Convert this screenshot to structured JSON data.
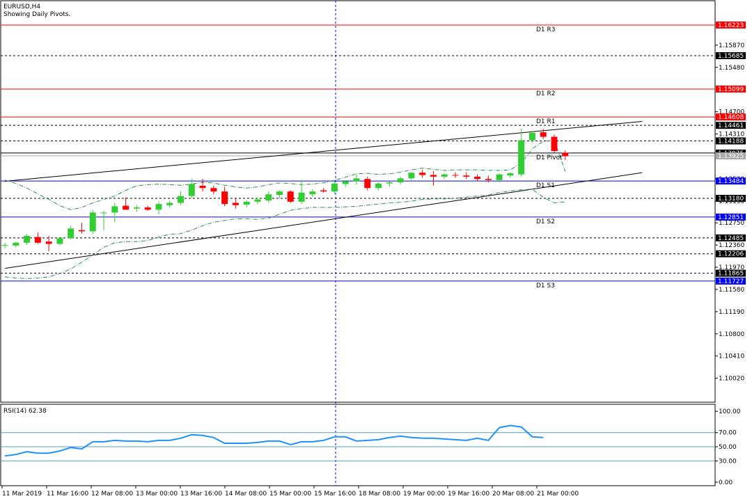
{
  "header": {
    "symbol": "EURUSD,H4",
    "subtitle": "Showing Daily Pivots."
  },
  "colors": {
    "bull": "#32cd32",
    "bear": "#ff0000",
    "pivot_red": "#ff0000",
    "pivot_blue": "#0000ff",
    "rsi": "#1e90ff",
    "band": "#2e8b57",
    "trend": "#000000"
  },
  "chart_data": [
    {
      "type": "candlestick",
      "title": "EURUSD,H4",
      "subtitle": "Showing Daily Pivots.",
      "ylim": [
        1.096,
        1.1665
      ],
      "price_ticks": [
        "1.15870",
        "1.15480",
        "1.14700",
        "1.14310",
        "1.13520",
        "1.13130",
        "1.12750",
        "1.12360",
        "1.11970",
        "1.11580",
        "1.11190",
        "1.10800",
        "1.10410",
        "1.10020"
      ],
      "time_labels": [
        "11 Mar 2019",
        "11 Mar 16:00",
        "12 Mar 08:00",
        "13 Mar 00:00",
        "13 Mar 16:00",
        "14 Mar 08:00",
        "15 Mar 00:00",
        "15 Mar 16:00",
        "18 Mar 08:00",
        "19 Mar 00:00",
        "19 Mar 16:00",
        "20 Mar 08:00",
        "21 Mar 00:00"
      ],
      "candles": [
        {
          "o": 1.1235,
          "h": 1.124,
          "l": 1.123,
          "c": 1.1236
        },
        {
          "o": 1.1235,
          "h": 1.1242,
          "l": 1.1232,
          "c": 1.124
        },
        {
          "o": 1.124,
          "h": 1.1255,
          "l": 1.1236,
          "c": 1.1252
        },
        {
          "o": 1.125,
          "h": 1.1258,
          "l": 1.1238,
          "c": 1.124
        },
        {
          "o": 1.1242,
          "h": 1.1252,
          "l": 1.1225,
          "c": 1.1238
        },
        {
          "o": 1.1238,
          "h": 1.125,
          "l": 1.1235,
          "c": 1.1248
        },
        {
          "o": 1.1248,
          "h": 1.127,
          "l": 1.1246,
          "c": 1.1265
        },
        {
          "o": 1.1262,
          "h": 1.1275,
          "l": 1.1256,
          "c": 1.126
        },
        {
          "o": 1.126,
          "h": 1.1298,
          "l": 1.1255,
          "c": 1.1293
        },
        {
          "o": 1.1292,
          "h": 1.1296,
          "l": 1.1262,
          "c": 1.1293
        },
        {
          "o": 1.1293,
          "h": 1.131,
          "l": 1.1276,
          "c": 1.1304
        },
        {
          "o": 1.1305,
          "h": 1.132,
          "l": 1.1298,
          "c": 1.1298
        },
        {
          "o": 1.13,
          "h": 1.1306,
          "l": 1.1294,
          "c": 1.1302
        },
        {
          "o": 1.1302,
          "h": 1.1305,
          "l": 1.1296,
          "c": 1.1298
        },
        {
          "o": 1.1298,
          "h": 1.1312,
          "l": 1.129,
          "c": 1.1308
        },
        {
          "o": 1.1306,
          "h": 1.1314,
          "l": 1.1302,
          "c": 1.131
        },
        {
          "o": 1.131,
          "h": 1.133,
          "l": 1.1306,
          "c": 1.1322
        },
        {
          "o": 1.1322,
          "h": 1.1352,
          "l": 1.1318,
          "c": 1.1343
        },
        {
          "o": 1.134,
          "h": 1.1352,
          "l": 1.133,
          "c": 1.1336
        },
        {
          "o": 1.1336,
          "h": 1.134,
          "l": 1.1325,
          "c": 1.133
        },
        {
          "o": 1.133,
          "h": 1.1338,
          "l": 1.1304,
          "c": 1.1308
        },
        {
          "o": 1.131,
          "h": 1.1318,
          "l": 1.13,
          "c": 1.1306
        },
        {
          "o": 1.1307,
          "h": 1.1314,
          "l": 1.1302,
          "c": 1.1312
        },
        {
          "o": 1.1312,
          "h": 1.1318,
          "l": 1.1308,
          "c": 1.1316
        },
        {
          "o": 1.1314,
          "h": 1.133,
          "l": 1.131,
          "c": 1.1325
        },
        {
          "o": 1.1324,
          "h": 1.1332,
          "l": 1.1318,
          "c": 1.133
        },
        {
          "o": 1.133,
          "h": 1.1332,
          "l": 1.131,
          "c": 1.1312
        },
        {
          "o": 1.1312,
          "h": 1.135,
          "l": 1.1308,
          "c": 1.1328
        },
        {
          "o": 1.1325,
          "h": 1.1334,
          "l": 1.132,
          "c": 1.133
        },
        {
          "o": 1.1332,
          "h": 1.1336,
          "l": 1.1328,
          "c": 1.133
        },
        {
          "o": 1.133,
          "h": 1.1348,
          "l": 1.1326,
          "c": 1.1344
        },
        {
          "o": 1.1343,
          "h": 1.135,
          "l": 1.1338,
          "c": 1.1348
        },
        {
          "o": 1.1348,
          "h": 1.136,
          "l": 1.1342,
          "c": 1.1353
        },
        {
          "o": 1.1352,
          "h": 1.1356,
          "l": 1.1332,
          "c": 1.1336
        },
        {
          "o": 1.1336,
          "h": 1.1346,
          "l": 1.1332,
          "c": 1.1344
        },
        {
          "o": 1.1344,
          "h": 1.1348,
          "l": 1.1338,
          "c": 1.1346
        },
        {
          "o": 1.1346,
          "h": 1.1356,
          "l": 1.1342,
          "c": 1.1353
        },
        {
          "o": 1.1353,
          "h": 1.1364,
          "l": 1.135,
          "c": 1.1363
        },
        {
          "o": 1.1363,
          "h": 1.1368,
          "l": 1.1354,
          "c": 1.1359
        },
        {
          "o": 1.1359,
          "h": 1.1366,
          "l": 1.134,
          "c": 1.1356
        },
        {
          "o": 1.1356,
          "h": 1.1362,
          "l": 1.1352,
          "c": 1.136
        },
        {
          "o": 1.1359,
          "h": 1.1364,
          "l": 1.1354,
          "c": 1.1358
        },
        {
          "o": 1.1358,
          "h": 1.1364,
          "l": 1.1352,
          "c": 1.1356
        },
        {
          "o": 1.1356,
          "h": 1.136,
          "l": 1.1348,
          "c": 1.1352
        },
        {
          "o": 1.1352,
          "h": 1.1358,
          "l": 1.1346,
          "c": 1.135
        },
        {
          "o": 1.135,
          "h": 1.1362,
          "l": 1.1346,
          "c": 1.136
        },
        {
          "o": 1.1358,
          "h": 1.1364,
          "l": 1.1354,
          "c": 1.1362
        },
        {
          "o": 1.136,
          "h": 1.144,
          "l": 1.1356,
          "c": 1.142
        },
        {
          "o": 1.142,
          "h": 1.1436,
          "l": 1.1416,
          "c": 1.1433
        },
        {
          "o": 1.1434,
          "h": 1.144,
          "l": 1.1422,
          "c": 1.1426
        },
        {
          "o": 1.1426,
          "h": 1.143,
          "l": 1.1398,
          "c": 1.1401
        },
        {
          "o": 1.1398,
          "h": 1.1402,
          "l": 1.1385,
          "c": 1.1392
        }
      ],
      "labeled_levels": [
        {
          "label": "D1 R3",
          "value": "1.16223",
          "price": 1.16223,
          "color": "#ff0000"
        },
        {
          "label": "D1 R2",
          "value": "1.15099",
          "price": 1.15099,
          "color": "#ff0000"
        },
        {
          "label": "D1 R1",
          "value": "1.14608",
          "price": 1.14608,
          "color": "#ff0000"
        },
        {
          "label": "D1 Pivot",
          "value": "1.13975",
          "price": 1.13975,
          "color": "#000000"
        },
        {
          "label": "D1 S1",
          "value": "1.13484",
          "price": 1.13484,
          "color": "#0000ff"
        },
        {
          "label": "D1 S2",
          "value": "1.12851",
          "price": 1.12851,
          "color": "#0000ff"
        },
        {
          "label": "D1 S3",
          "value": "1.11727",
          "price": 1.11727,
          "color": "#0000ff"
        }
      ],
      "dashed_levels": [
        {
          "value": "1.15685",
          "price": 1.15685
        },
        {
          "value": "1.14461",
          "price": 1.14461
        },
        {
          "value": "1.14188",
          "price": 1.14188
        },
        {
          "value": "1.13180",
          "price": 1.1318
        },
        {
          "value": "1.12485",
          "price": 1.12485
        },
        {
          "value": "1.12206",
          "price": 1.12206
        },
        {
          "value": "1.11865",
          "price": 1.11865
        }
      ],
      "current_price": "1.13925",
      "current_price_value": 1.13925,
      "trendlines": [
        {
          "from_bar": 0,
          "from_price": 1.1348,
          "to_bar": 58,
          "to_price": 1.1453
        },
        {
          "from_bar": 0,
          "from_price": 1.1195,
          "to_bar": 58,
          "to_price": 1.1363
        }
      ],
      "envelope_upper": [
        1.135,
        1.1344,
        1.1336,
        1.1326,
        1.1316,
        1.1305,
        1.1298,
        1.1302,
        1.131,
        1.1316,
        1.1322,
        1.1332,
        1.134,
        1.1342,
        1.1343,
        1.1342,
        1.1341,
        1.1343,
        1.1346,
        1.1345,
        1.1341,
        1.1338,
        1.1336,
        1.1338,
        1.1342,
        1.1345,
        1.1344,
        1.1342,
        1.1343,
        1.1345,
        1.135,
        1.1355,
        1.1361,
        1.1362,
        1.136,
        1.1361,
        1.1364,
        1.1368,
        1.1371,
        1.1369,
        1.1367,
        1.1368,
        1.1368,
        1.1368,
        1.1367,
        1.1367,
        1.1368,
        1.138,
        1.1405,
        1.1418,
        1.142,
        1.1365
      ],
      "envelope_lower": [
        1.118,
        1.1178,
        1.1177,
        1.1178,
        1.118,
        1.1186,
        1.1194,
        1.1206,
        1.1218,
        1.1232,
        1.124,
        1.1242,
        1.1242,
        1.1244,
        1.125,
        1.1255,
        1.1256,
        1.1262,
        1.127,
        1.1276,
        1.1279,
        1.1282,
        1.1282,
        1.1281,
        1.1283,
        1.129,
        1.1297,
        1.13,
        1.1302,
        1.1302,
        1.1302,
        1.1303,
        1.1304,
        1.1306,
        1.1308,
        1.131,
        1.1311,
        1.1313,
        1.1316,
        1.1317,
        1.1317,
        1.1318,
        1.132,
        1.1322,
        1.1324,
        1.1328,
        1.1331,
        1.1333,
        1.1334,
        1.132,
        1.131,
        1.1312
      ]
    },
    {
      "type": "line",
      "title": "RSI(14) 62.38",
      "ylim": [
        -5,
        110
      ],
      "yticks": [
        "100.00",
        "70.00",
        "50.00",
        "30.00",
        "0.00"
      ],
      "levels": [
        70,
        50,
        30
      ],
      "series": [
        {
          "name": "RSI(14)",
          "values": [
            37,
            39,
            43,
            41,
            41,
            44,
            49,
            47,
            57,
            57,
            59,
            58,
            58,
            57,
            59,
            59,
            62,
            67,
            66,
            63,
            55,
            55,
            55,
            56,
            58,
            58,
            53,
            57,
            57,
            59,
            64,
            64,
            58,
            59,
            60,
            63,
            65,
            63,
            62,
            62,
            61,
            60,
            59,
            62,
            59,
            77,
            80,
            78,
            64,
            63
          ]
        }
      ],
      "current_value": "62.38"
    }
  ]
}
